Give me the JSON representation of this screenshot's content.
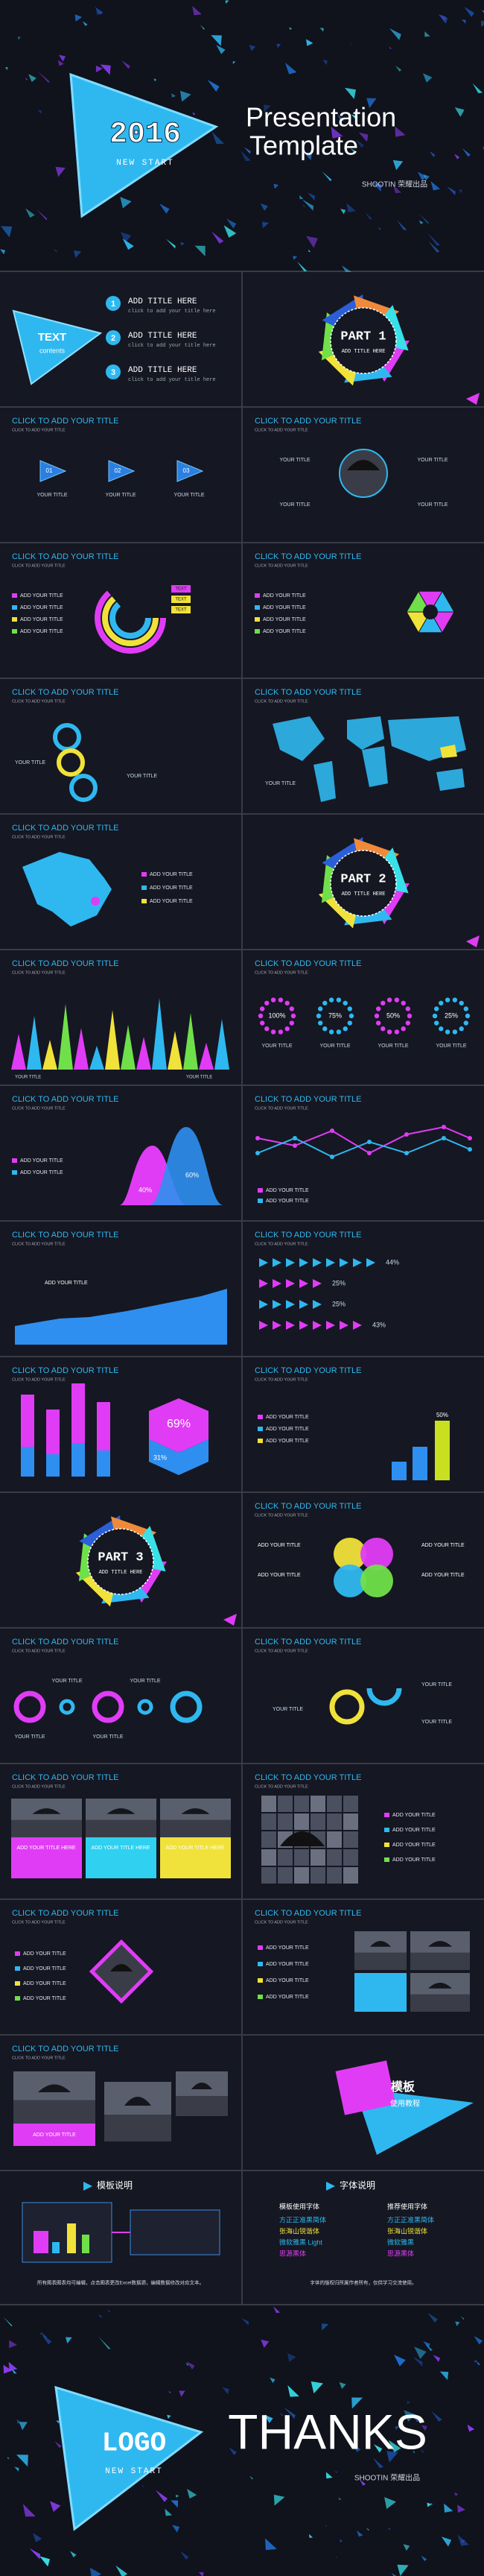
{
  "cover": {
    "year": "2016",
    "tag": "NEW START",
    "title_line1": "Presentation",
    "title_line2": "Template",
    "brand": "SHOOTIN  荣耀出品"
  },
  "slides": [
    {
      "kind": "agenda",
      "label": [
        "TEXT",
        "contents"
      ],
      "items": [
        {
          "num": "1",
          "title": "ADD TITLE HERE",
          "desc": "click to add your title here"
        },
        {
          "num": "2",
          "title": "ADD TITLE HERE",
          "desc": "click to add your title here"
        },
        {
          "num": "3",
          "title": "ADD TITLE HERE",
          "desc": "click to add your title here"
        }
      ]
    },
    {
      "kind": "part",
      "part": "PART 1",
      "caption": "ADD TITLE HERE"
    },
    {
      "kind": "circles3",
      "title": "CLICK TO ADD YOUR TITLE",
      "subtitle": "CLICK TO ADD YOUR TITLE",
      "nums": [
        "01",
        "02",
        "03"
      ],
      "labels": [
        "YOUR TITLE",
        "YOUR TITLE",
        "YOUR TITLE"
      ]
    },
    {
      "kind": "umbrella",
      "title": "CLICK TO ADD YOUR TITLE",
      "subtitle": "CLICK TO ADD YOUR TITLE",
      "labels": [
        "YOUR TITLE",
        "YOUR TITLE",
        "YOUR TITLE",
        "YOUR TITLE"
      ]
    },
    {
      "kind": "rings",
      "title": "CLICK TO ADD YOUR TITLE",
      "subtitle": "CLICK TO ADD YOUR TITLE",
      "legend": [
        "ADD YOUR TITLE",
        "ADD YOUR TITLE",
        "ADD YOUR TITLE",
        "ADD YOUR TITLE"
      ],
      "tags": [
        "TEXT",
        "TEXT",
        "TEXT"
      ]
    },
    {
      "kind": "pie",
      "title": "CLICK TO ADD YOUR TITLE",
      "subtitle": "CLICK TO ADD YOUR TITLE",
      "legend": [
        "ADD YOUR TITLE",
        "ADD YOUR TITLE",
        "ADD YOUR TITLE",
        "ADD YOUR TITLE"
      ]
    },
    {
      "kind": "rings2",
      "title": "CLICK TO ADD YOUR TITLE",
      "subtitle": "CLICK TO ADD YOUR TITLE",
      "labels": [
        "YOUR TITLE",
        "YOUR TITLE"
      ]
    },
    {
      "kind": "map",
      "title": "CLICK TO ADD YOUR TITLE",
      "subtitle": "CLICK TO ADD YOUR TITLE",
      "labels": [
        "YOUR TITLE"
      ]
    },
    {
      "kind": "china",
      "title": "CLICK TO ADD YOUR TITLE",
      "subtitle": "CLICK TO ADD YOUR TITLE",
      "legend": [
        "ADD YOUR TITLE",
        "ADD YOUR TITLE",
        "ADD YOUR TITLE"
      ]
    },
    {
      "kind": "part",
      "part": "PART 2",
      "caption": "ADD TITLE HERE"
    },
    {
      "kind": "spikes",
      "title": "CLICK TO ADD YOUR TITLE",
      "subtitle": "CLICK TO ADD YOUR TITLE",
      "labels": [
        "YOUR TITLE",
        "YOUR TITLE"
      ]
    },
    {
      "kind": "dots",
      "title": "CLICK TO ADD YOUR TITLE",
      "subtitle": "CLICK TO ADD YOUR TITLE",
      "pcts": [
        "100%",
        "75%",
        "50%",
        "25%"
      ],
      "labels": [
        "YOUR TITLE",
        "YOUR TITLE",
        "YOUR TITLE",
        "YOUR TITLE"
      ]
    },
    {
      "kind": "peaks",
      "title": "CLICK TO ADD YOUR TITLE",
      "subtitle": "CLICK TO ADD YOUR TITLE",
      "pcts": [
        "40%",
        "60%"
      ],
      "legend": [
        "ADD YOUR TITLE",
        "ADD YOUR TITLE"
      ]
    },
    {
      "kind": "linechart",
      "title": "CLICK TO ADD YOUR TITLE",
      "subtitle": "CLICK TO ADD YOUR TITLE",
      "legend": [
        "ADD YOUR TITLE",
        "ADD YOUR TITLE"
      ]
    },
    {
      "kind": "area",
      "title": "CLICK TO ADD YOUR TITLE",
      "subtitle": "CLICK TO ADD YOUR TITLE",
      "labels": [
        "ADD YOUR TITLE"
      ]
    },
    {
      "kind": "arrows",
      "title": "CLICK TO ADD YOUR TITLE",
      "subtitle": "CLICK TO ADD YOUR TITLE",
      "pcts": [
        "44%",
        "25%",
        "25%",
        "43%"
      ]
    },
    {
      "kind": "bars",
      "title": "CLICK TO ADD YOUR TITLE",
      "subtitle": "CLICK TO ADD YOUR TITLE",
      "pcts": [
        "69%",
        "31%"
      ]
    },
    {
      "kind": "bars2",
      "title": "CLICK TO ADD YOUR TITLE",
      "subtitle": "CLICK TO ADD YOUR TITLE",
      "pcts": [
        "50%"
      ],
      "legend": [
        "ADD YOUR TITLE",
        "ADD YOUR TITLE",
        "ADD YOUR TITLE"
      ]
    },
    {
      "kind": "part",
      "part": "PART 3",
      "caption": "ADD TITLE HERE"
    },
    {
      "kind": "petals",
      "title": "CLICK TO ADD YOUR TITLE",
      "subtitle": "CLICK TO ADD YOUR TITLE",
      "labels": [
        "ADD YOUR TITLE",
        "ADD YOUR TITLE",
        "ADD YOUR TITLE",
        "ADD YOUR TITLE"
      ]
    },
    {
      "kind": "ringsrow",
      "title": "CLICK TO ADD YOUR TITLE",
      "subtitle": "CLICK TO ADD YOUR TITLE",
      "labels": [
        "YOUR TITLE",
        "YOUR TITLE",
        "YOUR TITLE",
        "YOUR TITLE"
      ]
    },
    {
      "kind": "ringpair",
      "title": "CLICK TO ADD YOUR TITLE",
      "subtitle": "CLICK TO ADD YOUR TITLE",
      "labels": [
        "YOUR TITLE",
        "YOUR TITLE",
        "YOUR TITLE"
      ]
    },
    {
      "kind": "photos3",
      "title": "CLICK TO ADD YOUR TITLE",
      "subtitle": "CLICK TO ADD YOUR TITLE",
      "labels": [
        "ADD YOUR TITLE HERE",
        "ADD YOUR TITLE HERE",
        "ADD YOUR TITLE HERE"
      ]
    },
    {
      "kind": "gridphoto",
      "title": "CLICK TO ADD YOUR TITLE",
      "subtitle": "CLICK TO ADD YOUR TITLE",
      "legend": [
        "ADD YOUR TITLE",
        "ADD YOUR TITLE",
        "ADD YOUR TITLE",
        "ADD YOUR TITLE"
      ]
    },
    {
      "kind": "diamond",
      "title": "CLICK TO ADD YOUR TITLE",
      "subtitle": "CLICK TO ADD YOUR TITLE",
      "legend": [
        "ADD YOUR TITLE",
        "ADD YOUR TITLE",
        "ADD YOUR TITLE",
        "ADD YOUR TITLE"
      ]
    },
    {
      "kind": "photoslist",
      "title": "CLICK TO ADD YOUR TITLE",
      "subtitle": "CLICK TO ADD YOUR TITLE",
      "legend": [
        "ADD YOUR TITLE",
        "ADD YOUR TITLE",
        "ADD YOUR TITLE",
        "ADD YOUR TITLE"
      ]
    },
    {
      "kind": "photosbottom",
      "title": "CLICK TO ADD YOUR TITLE",
      "subtitle": "CLICK TO ADD YOUR TITLE",
      "labels": [
        "ADD YOUR TITLE"
      ]
    },
    {
      "kind": "tag",
      "label": [
        "模板",
        "使用教程"
      ]
    }
  ],
  "instructions": {
    "left_title": "模板说明",
    "left_note": "所有图表图表均可编辑，点击图表更改Excel数据源，编辑数据修改对应文本。",
    "right_title": "字体说明",
    "fonts_used_title": "模板使用字体",
    "fonts_used": [
      "方正正准黑简体",
      "张海山锐谐体",
      "微软雅黑 Light",
      "思源黑体"
    ],
    "fonts_rec_title": "推荐使用字体",
    "fonts_rec": [
      "方正正准黑简体",
      "张海山锐谐体",
      "微软雅黑",
      "思源黑体"
    ],
    "right_note": "字体的版权归所属作者所有，仅供学习交流使用。"
  },
  "closing": {
    "logo": "LOGO",
    "tag": "NEW START",
    "thanks": "THANKS",
    "brand": "SHOOTIN  荣耀出品"
  }
}
